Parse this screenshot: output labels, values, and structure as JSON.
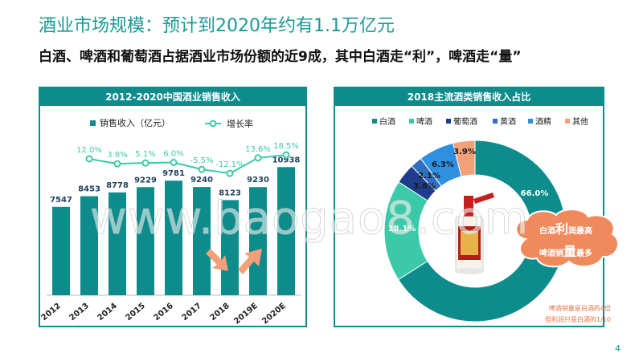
{
  "header": {
    "title": "酒业市场规模：预计到2020年约有1.1万亿元",
    "subtitle": "白酒、啤酒和葡萄酒占据酒业市场份额的近9成，其中白酒走“利”，啤酒走“量”"
  },
  "colors": {
    "teal": "#0e8c8c",
    "mint": "#3cc9a8",
    "navy": "#1e3c8c",
    "blue": "#2f8fe0",
    "salmon": "#f2a07a",
    "orange_note": "#e4703e"
  },
  "chart_data": [
    {
      "type": "bar",
      "title": "2012-2020中国酒业销售收入",
      "categories": [
        "2012",
        "2013",
        "2014",
        "2015",
        "2016",
        "2017",
        "2018",
        "2019E",
        "2020E"
      ],
      "series": [
        {
          "name": "销售收入（亿元）",
          "type": "bar",
          "values": [
            7547,
            8453,
            8778,
            9229,
            9781,
            9240,
            8123,
            9230,
            10938
          ]
        },
        {
          "name": "增长率",
          "type": "line",
          "values": [
            null,
            12.0,
            3.8,
            5.1,
            6.0,
            -5.5,
            -12.1,
            13.6,
            18.5
          ]
        }
      ],
      "growth_labels": [
        "",
        "12.0%",
        "3.8%",
        "5.1%",
        "6.0%",
        "-5.5%",
        "-12.1%",
        "13.6%",
        "18.5%"
      ],
      "legend": "top-left",
      "grid": false
    },
    {
      "type": "pie",
      "title": "2018主流酒类销售收入占比",
      "labels": [
        "白酒",
        "啤酒",
        "葡萄酒",
        "黄酒",
        "酒精",
        "其他"
      ],
      "values": [
        66.0,
        18.1,
        3.6,
        2.1,
        6.3,
        3.9
      ],
      "value_labels": [
        "66.0%",
        "18.1%",
        "3.6%",
        "2.1%",
        "6.3%",
        "3.9%"
      ],
      "colors": [
        "#0e8c8c",
        "#3cc9a8",
        "#1e3c8c",
        "#2f6fc0",
        "#2f8fe0",
        "#f2a07a"
      ],
      "legend": "top"
    }
  ],
  "callout": {
    "line1_a": "白酒",
    "line1_big": "利",
    "line1_b": "润最高",
    "line2_a": "啤酒销",
    "line2_big": "量",
    "line2_b": "最多"
  },
  "notes": {
    "line1": "啤酒销量是白酒的4倍",
    "line2": "但利润只是白酒的1/10"
  },
  "watermark": "www.baogao8.com",
  "page_number": "4"
}
